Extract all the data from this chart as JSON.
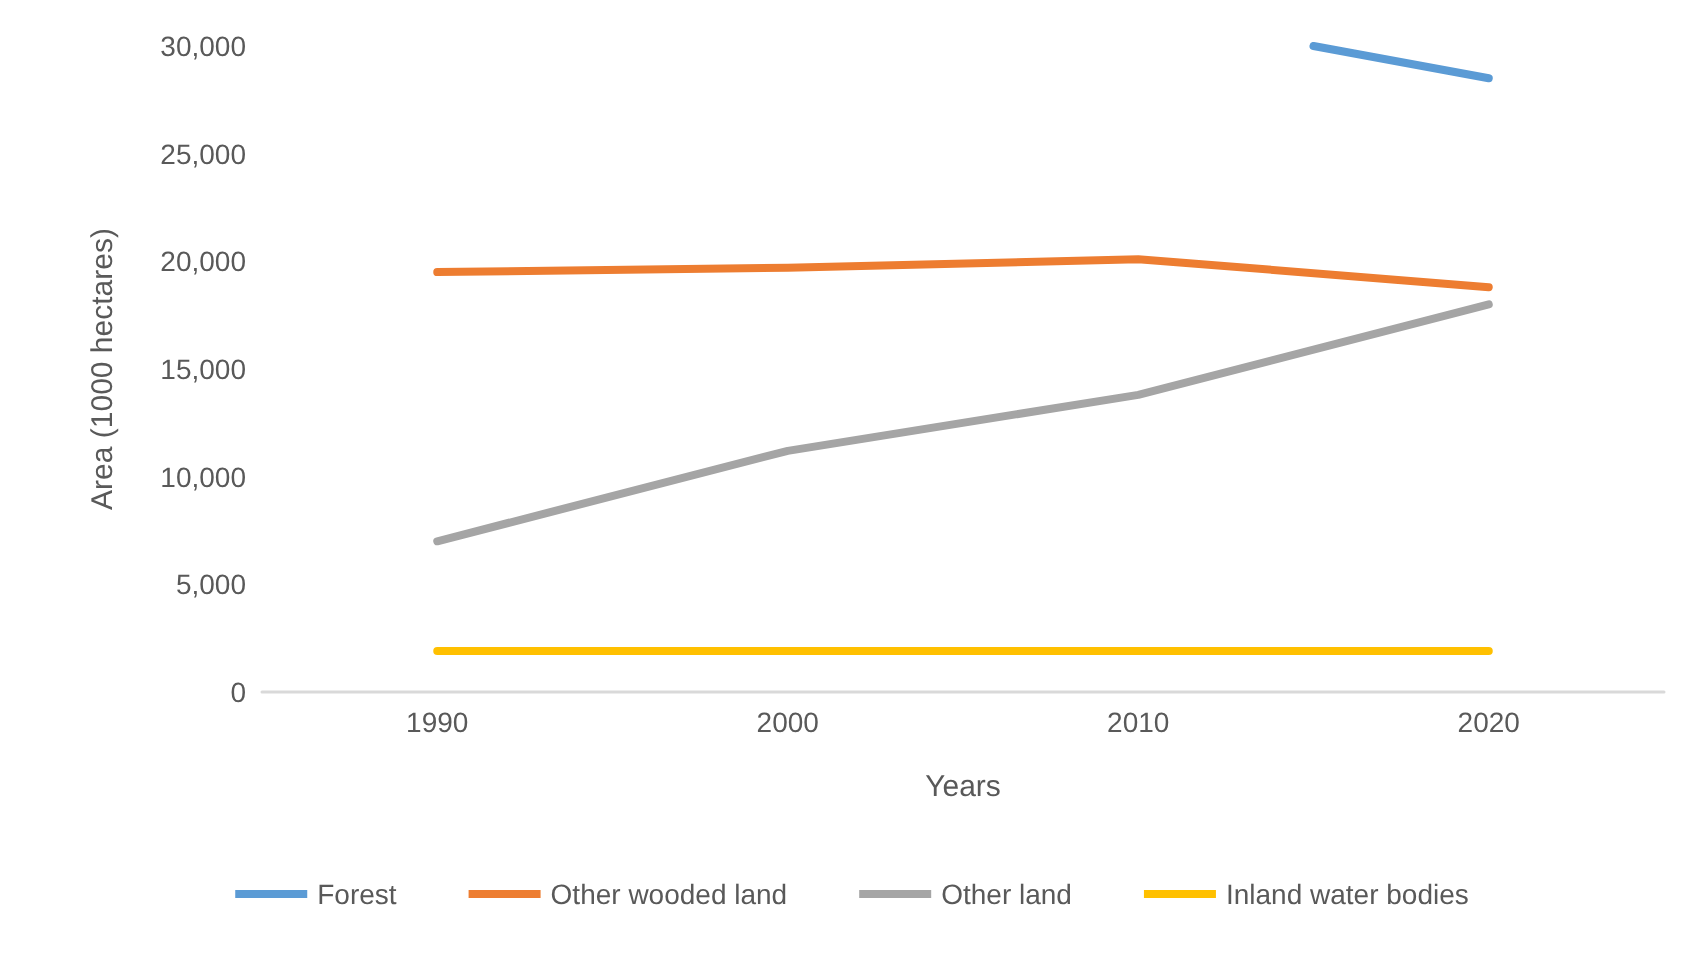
{
  "chart_data": {
    "type": "line",
    "xlabel": "Years",
    "ylabel": "Area (1000 hectares)",
    "x": [
      1990,
      2000,
      2010,
      2020
    ],
    "xlim": [
      1985,
      2025
    ],
    "xticks": [
      1990,
      2000,
      2010,
      2020
    ],
    "ylim": [
      0,
      30000
    ],
    "yticks": [
      0,
      {
        "value": 5000,
        "label": "5,000"
      },
      {
        "value": 10000,
        "label": "10,000"
      },
      {
        "value": 15000,
        "label": "15,000"
      },
      {
        "value": 20000,
        "label": "20,000"
      },
      {
        "value": 25000,
        "label": "25,000"
      },
      {
        "value": 30000,
        "label": "30,000"
      }
    ],
    "series": [
      {
        "name": "Forest",
        "color": "#5b9bd5",
        "x": [
          2015,
          2020
        ],
        "values": [
          30000,
          28500
        ]
      },
      {
        "name": "Other wooded land",
        "color": "#ed7d31",
        "values": [
          19500,
          19700,
          20100,
          18800
        ]
      },
      {
        "name": "Other land",
        "color": "#a5a5a5",
        "values": [
          7000,
          11200,
          13800,
          18000
        ]
      },
      {
        "name": "Inland water bodies",
        "color": "#ffc000",
        "values": [
          1900,
          1900,
          1900,
          1900
        ]
      }
    ],
    "grid": false,
    "legend": "bottom",
    "marker": "none",
    "line_style": "solid"
  }
}
